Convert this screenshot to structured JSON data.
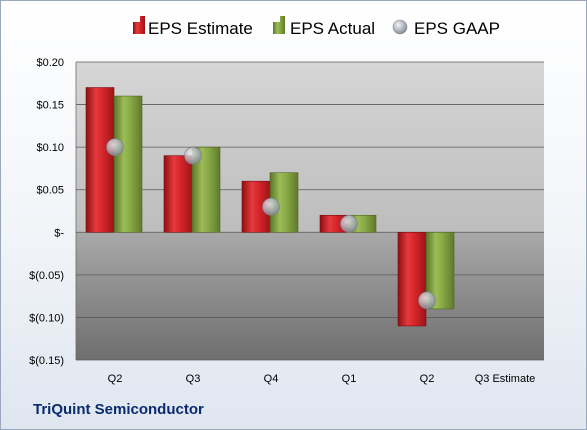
{
  "chart_data": {
    "type": "bar",
    "categories": [
      "Q2",
      "Q3",
      "Q4",
      "Q1",
      "Q2",
      "Q3 Estimate"
    ],
    "series": [
      {
        "name": "EPS Estimate",
        "values": [
          0.17,
          0.09,
          0.06,
          0.02,
          -0.11,
          null
        ]
      },
      {
        "name": "EPS Actual",
        "values": [
          0.16,
          0.1,
          0.07,
          0.02,
          -0.09,
          null
        ]
      },
      {
        "name": "EPS GAAP",
        "values": [
          0.1,
          0.09,
          0.03,
          0.01,
          -0.08,
          null
        ],
        "marker": "circle"
      }
    ],
    "ylim": [
      -0.15,
      0.2
    ],
    "yticks": [
      0.2,
      0.15,
      0.1,
      0.05,
      0,
      -0.05,
      -0.1,
      -0.15
    ],
    "ytick_labels": [
      "$0.20",
      "$0.15",
      "$0.10",
      "$0.05",
      "$-",
      "$(0.05)",
      "$(0.10)",
      "$(0.15)"
    ],
    "legend_position": "top",
    "grid": true,
    "colors": {
      "estimate": "#cc1f24",
      "actual": "#7f9f3e",
      "gaap": "#b8bcc6"
    }
  },
  "footer": {
    "company": "TriQuint Semiconductor"
  }
}
